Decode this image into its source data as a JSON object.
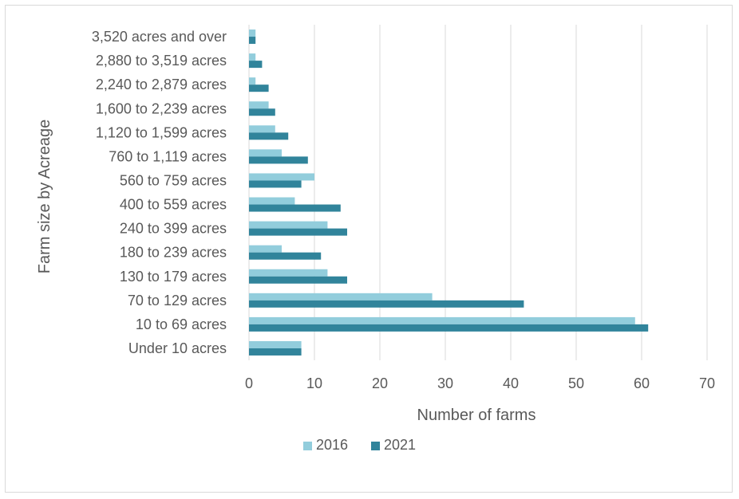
{
  "chart_data": {
    "type": "bar",
    "orientation": "horizontal",
    "categories": [
      "Under 10 acres",
      "10 to 69 acres",
      "70 to 129 acres",
      "130 to 179 acres",
      "180 to 239 acres",
      "240 to 399 acres",
      "400 to 559 acres",
      "560 to 759 acres",
      "760 to 1,119 acres",
      "1,120 to 1,599 acres",
      "1,600 to 2,239 acres",
      "2,240 to 2,879 acres",
      "2,880 to 3,519 acres",
      "3,520 acres and over"
    ],
    "series": [
      {
        "name": "2016",
        "color": "#92cddc",
        "values": [
          8,
          59,
          28,
          12,
          5,
          12,
          7,
          10,
          5,
          4,
          3,
          1,
          1,
          1
        ]
      },
      {
        "name": "2021",
        "color": "#31849b",
        "values": [
          8,
          61,
          42,
          15,
          11,
          15,
          14,
          8,
          9,
          6,
          4,
          3,
          2,
          1
        ]
      }
    ],
    "xlabel": "Number of farms",
    "ylabel": "Farm size by Acreage",
    "xlim": [
      0,
      70
    ],
    "xticks": [
      0,
      10,
      20,
      30,
      40,
      50,
      60,
      70
    ],
    "grid": true,
    "legend_position": "bottom"
  }
}
